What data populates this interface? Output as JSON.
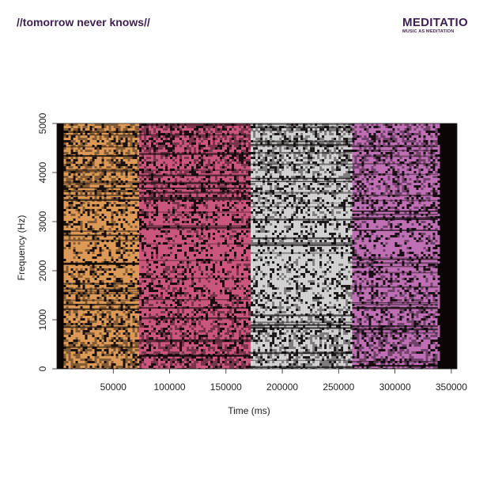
{
  "header": {
    "title": "//tomorrow never knows//",
    "brand_name": "MEDITATIO",
    "brand_tagline": "MUSIC AS MEDITATION"
  },
  "chart_data": {
    "type": "heatmap",
    "title": "",
    "xlabel": "Time (ms)",
    "ylabel": "Frequency (Hz)",
    "xlim": [
      0,
      355000
    ],
    "ylim": [
      0,
      5000
    ],
    "x_ticks": [
      50000,
      100000,
      150000,
      200000,
      250000,
      300000,
      350000
    ],
    "y_ticks": [
      0,
      1000,
      2000,
      3000,
      4000,
      5000
    ],
    "background_color": "#0a0606",
    "segments": [
      {
        "x_start": 6000,
        "x_end": 73000,
        "color": "#e8a25c"
      },
      {
        "x_start": 73000,
        "x_end": 172000,
        "color": "#d45b85"
      },
      {
        "x_start": 172000,
        "x_end": 262000,
        "color": "#dedede"
      },
      {
        "x_start": 262000,
        "x_end": 338000,
        "color": "#c977be"
      }
    ],
    "grid": false,
    "legend": "none"
  }
}
